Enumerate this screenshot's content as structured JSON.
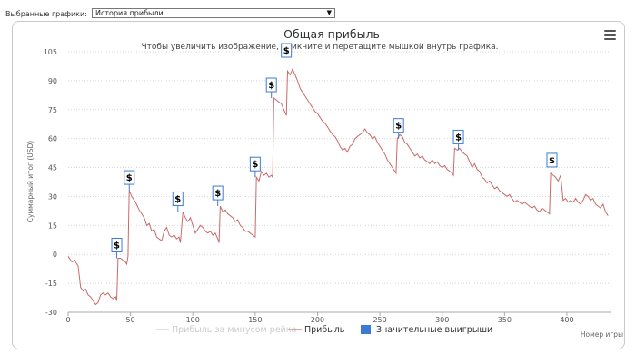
{
  "toolbar": {
    "select_label": "Выбранные графики:",
    "select_value": "История прибыли"
  },
  "chart_data": {
    "type": "line",
    "title": "Общая прибыль",
    "subtitle": "Чтобы увеличить изображение, кликните и перетащите мышкой внутрь графика.",
    "ylabel": "Суммарный итог (USD)",
    "xlabel": "Номер игры",
    "xlim": [
      0,
      435
    ],
    "ylim": [
      -30,
      105
    ],
    "x_ticks": [
      0,
      50,
      100,
      150,
      200,
      250,
      300,
      350,
      400
    ],
    "y_ticks": [
      -30,
      -15,
      0,
      15,
      30,
      45,
      60,
      75,
      90,
      105
    ],
    "grid": true,
    "legend_position": "bottom",
    "series": [
      {
        "name": "Прибыль за минусом рейка",
        "color": "#cccccc",
        "visible": false,
        "points": []
      },
      {
        "name": "Прибыль",
        "color": "#c96a6a",
        "points": [
          [
            0,
            -1
          ],
          [
            3,
            -4
          ],
          [
            5,
            -3
          ],
          [
            8,
            -6
          ],
          [
            10,
            -17
          ],
          [
            12,
            -19
          ],
          [
            14,
            -18
          ],
          [
            16,
            -21
          ],
          [
            18,
            -22
          ],
          [
            20,
            -24
          ],
          [
            22,
            -26
          ],
          [
            24,
            -25
          ],
          [
            26,
            -21
          ],
          [
            28,
            -20
          ],
          [
            30,
            -21
          ],
          [
            32,
            -20
          ],
          [
            34,
            -22
          ],
          [
            36,
            -23
          ],
          [
            38,
            -22
          ],
          [
            39,
            -24
          ],
          [
            40,
            -2
          ],
          [
            42,
            -2
          ],
          [
            44,
            -3
          ],
          [
            46,
            -4
          ],
          [
            47,
            -5
          ],
          [
            48,
            -1
          ],
          [
            49,
            33
          ],
          [
            51,
            30
          ],
          [
            54,
            27
          ],
          [
            57,
            23
          ],
          [
            59,
            21
          ],
          [
            61,
            19
          ],
          [
            63,
            15
          ],
          [
            65,
            16
          ],
          [
            67,
            12
          ],
          [
            69,
            13
          ],
          [
            71,
            9
          ],
          [
            73,
            8
          ],
          [
            75,
            7
          ],
          [
            77,
            12
          ],
          [
            79,
            14
          ],
          [
            81,
            10
          ],
          [
            83,
            9
          ],
          [
            85,
            10
          ],
          [
            87,
            8
          ],
          [
            89,
            9
          ],
          [
            90,
            6
          ],
          [
            92,
            22
          ],
          [
            94,
            19
          ],
          [
            96,
            17
          ],
          [
            98,
            19
          ],
          [
            100,
            15
          ],
          [
            102,
            11
          ],
          [
            104,
            13
          ],
          [
            106,
            15
          ],
          [
            108,
            14
          ],
          [
            110,
            12
          ],
          [
            112,
            11
          ],
          [
            114,
            12
          ],
          [
            116,
            10
          ],
          [
            118,
            11
          ],
          [
            120,
            8
          ],
          [
            121,
            6
          ],
          [
            122,
            25
          ],
          [
            124,
            22
          ],
          [
            126,
            23
          ],
          [
            128,
            21
          ],
          [
            130,
            20
          ],
          [
            132,
            19
          ],
          [
            134,
            17
          ],
          [
            136,
            18
          ],
          [
            138,
            15
          ],
          [
            140,
            14
          ],
          [
            142,
            12
          ],
          [
            144,
            12
          ],
          [
            146,
            11
          ],
          [
            148,
            10
          ],
          [
            150,
            9
          ],
          [
            151,
            40
          ],
          [
            153,
            38
          ],
          [
            155,
            43
          ],
          [
            157,
            41
          ],
          [
            159,
            42
          ],
          [
            161,
            40
          ],
          [
            163,
            41
          ],
          [
            164,
            40
          ],
          [
            165,
            81
          ],
          [
            167,
            80
          ],
          [
            169,
            79
          ],
          [
            171,
            78
          ],
          [
            173,
            75
          ],
          [
            175,
            72
          ],
          [
            176,
            95
          ],
          [
            178,
            93
          ],
          [
            180,
            96
          ],
          [
            182,
            93
          ],
          [
            184,
            90
          ],
          [
            186,
            86
          ],
          [
            188,
            84
          ],
          [
            190,
            82
          ],
          [
            192,
            80
          ],
          [
            194,
            78
          ],
          [
            196,
            76
          ],
          [
            198,
            74
          ],
          [
            200,
            73
          ],
          [
            202,
            71
          ],
          [
            204,
            69
          ],
          [
            206,
            68
          ],
          [
            208,
            66
          ],
          [
            210,
            64
          ],
          [
            212,
            62
          ],
          [
            214,
            61
          ],
          [
            216,
            59
          ],
          [
            218,
            56
          ],
          [
            220,
            54
          ],
          [
            222,
            55
          ],
          [
            224,
            53
          ],
          [
            226,
            56
          ],
          [
            228,
            57
          ],
          [
            230,
            60
          ],
          [
            232,
            61
          ],
          [
            234,
            62
          ],
          [
            236,
            63
          ],
          [
            238,
            65
          ],
          [
            240,
            63
          ],
          [
            242,
            62
          ],
          [
            244,
            60
          ],
          [
            246,
            61
          ],
          [
            248,
            58
          ],
          [
            250,
            56
          ],
          [
            252,
            54
          ],
          [
            254,
            52
          ],
          [
            256,
            49
          ],
          [
            258,
            47
          ],
          [
            260,
            45
          ],
          [
            262,
            43
          ],
          [
            263,
            42
          ],
          [
            264,
            60
          ],
          [
            266,
            62
          ],
          [
            268,
            61
          ],
          [
            270,
            58
          ],
          [
            272,
            57
          ],
          [
            274,
            55
          ],
          [
            276,
            53
          ],
          [
            278,
            51
          ],
          [
            280,
            52
          ],
          [
            282,
            50
          ],
          [
            284,
            51
          ],
          [
            286,
            49
          ],
          [
            288,
            48
          ],
          [
            290,
            47
          ],
          [
            292,
            49
          ],
          [
            294,
            47
          ],
          [
            296,
            48
          ],
          [
            298,
            46
          ],
          [
            300,
            45
          ],
          [
            302,
            46
          ],
          [
            304,
            44
          ],
          [
            306,
            43
          ],
          [
            308,
            42
          ],
          [
            309,
            41
          ],
          [
            310,
            55
          ],
          [
            312,
            54
          ],
          [
            314,
            55
          ],
          [
            316,
            53
          ],
          [
            318,
            52
          ],
          [
            320,
            51
          ],
          [
            322,
            48
          ],
          [
            324,
            45
          ],
          [
            326,
            47
          ],
          [
            328,
            44
          ],
          [
            330,
            43
          ],
          [
            332,
            40
          ],
          [
            334,
            39
          ],
          [
            336,
            37
          ],
          [
            338,
            38
          ],
          [
            340,
            36
          ],
          [
            342,
            34
          ],
          [
            344,
            35
          ],
          [
            346,
            33
          ],
          [
            348,
            32
          ],
          [
            350,
            31
          ],
          [
            352,
            30
          ],
          [
            354,
            31
          ],
          [
            356,
            29
          ],
          [
            358,
            27
          ],
          [
            360,
            28
          ],
          [
            362,
            27
          ],
          [
            364,
            26
          ],
          [
            366,
            27
          ],
          [
            368,
            26
          ],
          [
            370,
            25
          ],
          [
            372,
            24
          ],
          [
            374,
            25
          ],
          [
            376,
            23
          ],
          [
            378,
            22
          ],
          [
            380,
            24
          ],
          [
            382,
            23
          ],
          [
            384,
            22
          ],
          [
            386,
            21
          ],
          [
            387,
            42
          ],
          [
            389,
            41
          ],
          [
            391,
            40
          ],
          [
            393,
            38
          ],
          [
            395,
            41
          ],
          [
            397,
            28
          ],
          [
            399,
            29
          ],
          [
            401,
            27
          ],
          [
            403,
            28
          ],
          [
            405,
            27
          ],
          [
            407,
            29
          ],
          [
            409,
            27
          ],
          [
            411,
            26
          ],
          [
            413,
            28
          ],
          [
            415,
            31
          ],
          [
            417,
            30
          ],
          [
            419,
            28
          ],
          [
            421,
            29
          ],
          [
            423,
            26
          ],
          [
            425,
            25
          ],
          [
            427,
            24
          ],
          [
            429,
            26
          ],
          [
            431,
            22
          ],
          [
            433,
            20
          ]
        ]
      },
      {
        "name": "Значительные выигрыши",
        "color": "#3a7bd5",
        "type": "flags",
        "flag_text": "$",
        "points": [
          [
            39,
            -2
          ],
          [
            49,
            33
          ],
          [
            88,
            22
          ],
          [
            120,
            25
          ],
          [
            150,
            40
          ],
          [
            163,
            81
          ],
          [
            175,
            105
          ],
          [
            265,
            60
          ],
          [
            313,
            54
          ],
          [
            388,
            42
          ]
        ]
      }
    ]
  }
}
